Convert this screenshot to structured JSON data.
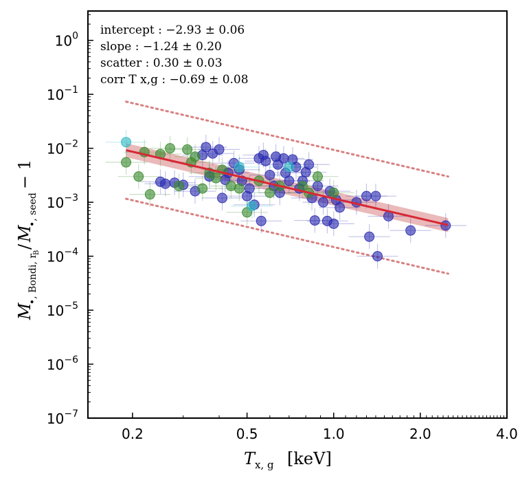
{
  "chart_data": {
    "type": "scatter",
    "title": "",
    "xlabel": "T_x,g [keV]",
    "ylabel": "M•,Bondi,rB / M•,seed − 1",
    "x_scale": "log",
    "y_scale": "log",
    "xlim": [
      0.14,
      4.0
    ],
    "ylim": [
      1e-07,
      3.5
    ],
    "xticks": [
      {
        "value": 0.2,
        "label": "0.2"
      },
      {
        "value": 0.5,
        "label": "0.5"
      },
      {
        "value": 1.0,
        "label": "1.0"
      },
      {
        "value": 2.0,
        "label": "2.0"
      },
      {
        "value": 4.0,
        "label": "4.0"
      }
    ],
    "yticks": [
      {
        "value": 1e-07,
        "label": "10",
        "exp": "−7"
      },
      {
        "value": 1e-06,
        "label": "10",
        "exp": "−6"
      },
      {
        "value": 1e-05,
        "label": "10",
        "exp": "−5"
      },
      {
        "value": 0.0001,
        "label": "10",
        "exp": "−4"
      },
      {
        "value": 0.001,
        "label": "10",
        "exp": "−3"
      },
      {
        "value": 0.01,
        "label": "10",
        "exp": "−2"
      },
      {
        "value": 0.1,
        "label": "10",
        "exp": "−1"
      },
      {
        "value": 1,
        "label": "10",
        "exp": "0"
      }
    ],
    "stats": [
      "intercept : −2.93 ± 0.06",
      "slope : −1.24 ± 0.20",
      "scatter : 0.30 ± 0.03",
      "corr T x,g : −0.69 ± 0.08"
    ],
    "fit": {
      "intercept": -2.93,
      "slope": -1.24,
      "scatter": 0.3,
      "x_range": [
        0.19,
        2.5
      ],
      "color": "#d62734",
      "band_color": "#d98080"
    },
    "colors": {
      "blue": "#2b2bb0",
      "green": "#3a8a2e",
      "cyan": "#2fb9c4"
    },
    "series": [
      {
        "color_key": "blue",
        "points": [
          [
            0.25,
            0.0024
          ],
          [
            0.26,
            0.0022
          ],
          [
            0.28,
            0.0023
          ],
          [
            0.3,
            0.0021
          ],
          [
            0.33,
            0.0016
          ],
          [
            0.35,
            0.0075
          ],
          [
            0.36,
            0.0105
          ],
          [
            0.37,
            0.003
          ],
          [
            0.38,
            0.008
          ],
          [
            0.4,
            0.0095
          ],
          [
            0.41,
            0.0012
          ],
          [
            0.42,
            0.0026
          ],
          [
            0.43,
            0.0035
          ],
          [
            0.45,
            0.0053
          ],
          [
            0.47,
            0.004
          ],
          [
            0.48,
            0.0025
          ],
          [
            0.5,
            0.0013
          ],
          [
            0.51,
            0.0018
          ],
          [
            0.53,
            0.0009
          ],
          [
            0.55,
            0.0065
          ],
          [
            0.56,
            0.00045
          ],
          [
            0.57,
            0.0075
          ],
          [
            0.58,
            0.0058
          ],
          [
            0.6,
            0.0032
          ],
          [
            0.62,
            0.002
          ],
          [
            0.63,
            0.007
          ],
          [
            0.64,
            0.005
          ],
          [
            0.65,
            0.0015
          ],
          [
            0.67,
            0.0065
          ],
          [
            0.68,
            0.0035
          ],
          [
            0.7,
            0.0025
          ],
          [
            0.72,
            0.0062
          ],
          [
            0.74,
            0.0045
          ],
          [
            0.76,
            0.0018
          ],
          [
            0.78,
            0.0025
          ],
          [
            0.8,
            0.0036
          ],
          [
            0.82,
            0.005
          ],
          [
            0.84,
            0.0012
          ],
          [
            0.86,
            0.00046
          ],
          [
            0.88,
            0.002
          ],
          [
            0.92,
            0.001
          ],
          [
            0.95,
            0.00045
          ],
          [
            0.97,
            0.0016
          ],
          [
            1.0,
            0.0004
          ],
          [
            1.02,
            0.0011
          ],
          [
            1.05,
            0.0008
          ],
          [
            1.2,
            0.001
          ],
          [
            1.3,
            0.0013
          ],
          [
            1.33,
            0.00023
          ],
          [
            1.4,
            0.0013
          ],
          [
            1.42,
            0.0001
          ],
          [
            1.55,
            0.00055
          ],
          [
            1.85,
            0.0003
          ],
          [
            2.45,
            0.00037
          ]
        ]
      },
      {
        "color_key": "green",
        "points": [
          [
            0.19,
            0.0055
          ],
          [
            0.21,
            0.003
          ],
          [
            0.22,
            0.0085
          ],
          [
            0.23,
            0.0014
          ],
          [
            0.25,
            0.0078
          ],
          [
            0.27,
            0.01
          ],
          [
            0.29,
            0.002
          ],
          [
            0.31,
            0.0095
          ],
          [
            0.32,
            0.0055
          ],
          [
            0.33,
            0.007
          ],
          [
            0.35,
            0.0018
          ],
          [
            0.37,
            0.0035
          ],
          [
            0.39,
            0.0028
          ],
          [
            0.41,
            0.004
          ],
          [
            0.44,
            0.002
          ],
          [
            0.47,
            0.0018
          ],
          [
            0.5,
            0.00065
          ],
          [
            0.55,
            0.0025
          ],
          [
            0.6,
            0.0015
          ],
          [
            0.65,
            0.002
          ],
          [
            0.78,
            0.002
          ],
          [
            0.82,
            0.0015
          ],
          [
            0.88,
            0.003
          ],
          [
            1.0,
            0.0015
          ]
        ]
      },
      {
        "color_key": "cyan",
        "points": [
          [
            0.19,
            0.013
          ],
          [
            0.47,
            0.0045
          ],
          [
            0.52,
            0.00085
          ],
          [
            0.7,
            0.0045
          ]
        ]
      }
    ]
  }
}
